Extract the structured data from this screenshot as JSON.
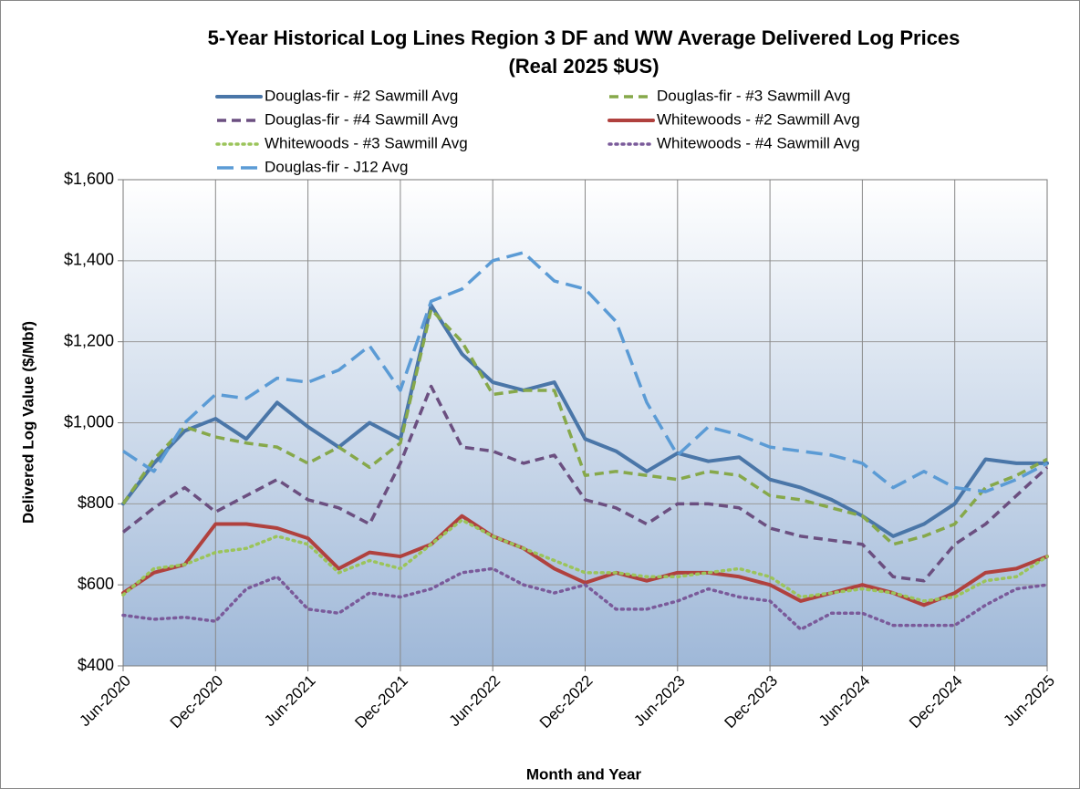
{
  "chart_data": {
    "type": "line",
    "title": "5-Year Historical Log Lines Region 3 DF and WW Average Delivered Log Prices",
    "subtitle": "(Real 2025 $US)",
    "x_label": "Month and Year",
    "y_label": "Delivered Log Value ($/Mbf)",
    "categories": [
      "Jun-2020",
      null,
      null,
      "Dec-2020",
      null,
      null,
      "Jun-2021",
      null,
      null,
      "Dec-2021",
      null,
      null,
      "Jun-2022",
      null,
      null,
      "Dec-2022",
      null,
      null,
      "Jun-2023",
      null,
      null,
      "Dec-2023",
      null,
      null,
      "Jun-2024",
      null,
      null,
      "Dec-2024",
      null,
      null,
      "Jun-2025"
    ],
    "ylim": [
      400,
      1600
    ],
    "yticks": [
      {
        "value": 400,
        "label": "$400"
      },
      {
        "value": 600,
        "label": "$600"
      },
      {
        "value": 800,
        "label": "$800"
      },
      {
        "value": 1000,
        "label": "$1,000"
      },
      {
        "value": 1200,
        "label": "$1,200"
      },
      {
        "value": 1400,
        "label": "$1,400"
      },
      {
        "value": 1600,
        "label": "$1,600"
      }
    ],
    "grid": true,
    "series": [
      {
        "name": "Douglas-fir - #2 Sawmill Avg",
        "color": "#4a76a8",
        "style": "solid",
        "values": [
          800,
          900,
          980,
          1010,
          960,
          1050,
          990,
          940,
          1000,
          960,
          1290,
          1170,
          1100,
          1080,
          1100,
          960,
          930,
          880,
          925,
          905,
          915,
          860,
          840,
          810,
          770,
          720,
          750,
          800,
          910,
          900,
          900
        ]
      },
      {
        "name": "Douglas-fir - #3 Sawmill Avg",
        "color": "#86a84a",
        "style": "dashed",
        "values": [
          800,
          910,
          990,
          965,
          950,
          940,
          900,
          940,
          890,
          950,
          1280,
          1200,
          1070,
          1080,
          1080,
          870,
          880,
          870,
          860,
          880,
          870,
          820,
          810,
          790,
          770,
          700,
          720,
          750,
          840,
          870,
          910
        ]
      },
      {
        "name": "Douglas-fir - #4 Sawmill Avg",
        "color": "#6b4f80",
        "style": "dashed",
        "values": [
          730,
          790,
          840,
          780,
          820,
          860,
          810,
          790,
          750,
          900,
          1090,
          940,
          930,
          900,
          920,
          810,
          790,
          750,
          800,
          800,
          790,
          740,
          720,
          710,
          700,
          620,
          610,
          700,
          750,
          820,
          890
        ]
      },
      {
        "name": "Whitewoods - #2 Sawmill Avg",
        "color": "#b0413e",
        "style": "solid",
        "values": [
          580,
          630,
          650,
          750,
          750,
          740,
          715,
          640,
          680,
          670,
          700,
          770,
          720,
          690,
          640,
          605,
          630,
          610,
          630,
          630,
          620,
          600,
          560,
          580,
          600,
          580,
          550,
          580,
          630,
          640,
          670
        ]
      },
      {
        "name": "Whitewoods - #3 Sawmill Avg",
        "color": "#9bc45a",
        "style": "dotted",
        "values": [
          575,
          640,
          650,
          680,
          690,
          720,
          700,
          630,
          660,
          640,
          700,
          760,
          720,
          690,
          660,
          630,
          630,
          620,
          620,
          630,
          640,
          620,
          570,
          580,
          590,
          580,
          560,
          570,
          610,
          620,
          670
        ]
      },
      {
        "name": "Whitewoods - #4 Sawmill Avg",
        "color": "#7a5a9a",
        "style": "dotted",
        "values": [
          525,
          515,
          520,
          510,
          590,
          620,
          540,
          530,
          580,
          570,
          590,
          630,
          640,
          600,
          580,
          600,
          540,
          540,
          560,
          590,
          570,
          560,
          490,
          530,
          530,
          500,
          500,
          500,
          550,
          590,
          600
        ]
      },
      {
        "name": "Douglas-fir - J12 Avg",
        "color": "#5b9bd5",
        "style": "long-dashed",
        "values": [
          930,
          880,
          1000,
          1070,
          1060,
          1110,
          1100,
          1130,
          1190,
          1080,
          1300,
          1330,
          1400,
          1420,
          1350,
          1330,
          1250,
          1050,
          920,
          990,
          970,
          940,
          930,
          920,
          900,
          840,
          880,
          840,
          830,
          860,
          900
        ]
      }
    ]
  }
}
